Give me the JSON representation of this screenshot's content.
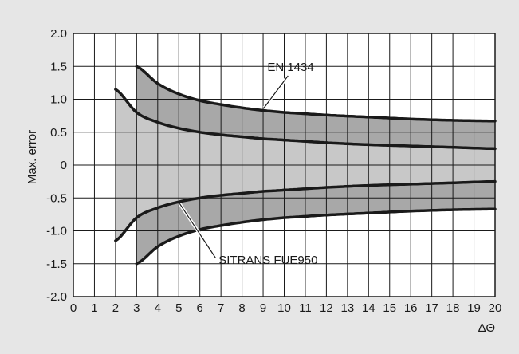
{
  "chart_data": {
    "type": "area",
    "title": "",
    "xlabel": "ΔΘ",
    "ylabel": "Max. error",
    "xlim": [
      0,
      20
    ],
    "ylim": [
      -2.0,
      2.0
    ],
    "x_ticks": [
      "0",
      "1",
      "2",
      "3",
      "4",
      "5",
      "6",
      "7",
      "8",
      "9",
      "10",
      "11",
      "12",
      "13",
      "14",
      "15",
      "16",
      "17",
      "18",
      "19",
      "20"
    ],
    "y_ticks": [
      "2.0",
      "1.5",
      "1.0",
      "0.5",
      "0",
      "-0.5",
      "-1.0",
      "-1.5",
      "-2.0"
    ],
    "grid": true,
    "series": [
      {
        "name": "EN 1434",
        "x": [
          3,
          4,
          5,
          6,
          7,
          8,
          9,
          10,
          12,
          14,
          16,
          18,
          20
        ],
        "upper": [
          1.5,
          1.24,
          1.08,
          0.98,
          0.92,
          0.87,
          0.83,
          0.8,
          0.76,
          0.73,
          0.7,
          0.68,
          0.67
        ],
        "lower": [
          -1.5,
          -1.24,
          -1.08,
          -0.98,
          -0.92,
          -0.87,
          -0.83,
          -0.8,
          -0.76,
          -0.73,
          -0.7,
          -0.68,
          -0.67
        ]
      },
      {
        "name": "SITRANS FUE950",
        "x": [
          2,
          3,
          4,
          5,
          6,
          7,
          8,
          9,
          10,
          12,
          14,
          16,
          18,
          20
        ],
        "upper": [
          1.15,
          0.8,
          0.65,
          0.56,
          0.5,
          0.46,
          0.43,
          0.4,
          0.38,
          0.34,
          0.31,
          0.29,
          0.27,
          0.25
        ],
        "lower": [
          -1.15,
          -0.8,
          -0.65,
          -0.56,
          -0.5,
          -0.46,
          -0.43,
          -0.4,
          -0.38,
          -0.34,
          -0.31,
          -0.29,
          -0.27,
          -0.25
        ]
      }
    ],
    "annotations": [
      {
        "text": "EN 1434",
        "series": "EN 1434",
        "at_x": 9.2
      },
      {
        "text": "SITRANS FUE950",
        "series": "SITRANS FUE950",
        "at_x": 5.0
      }
    ],
    "colors": {
      "background": "#e6e6e6",
      "plot_bg": "#ffffff",
      "inner_band": "#c8c8c8",
      "outer_band": "#a8a8a8",
      "grid": "#1a1a1a",
      "line": "#1a1a1a"
    }
  }
}
